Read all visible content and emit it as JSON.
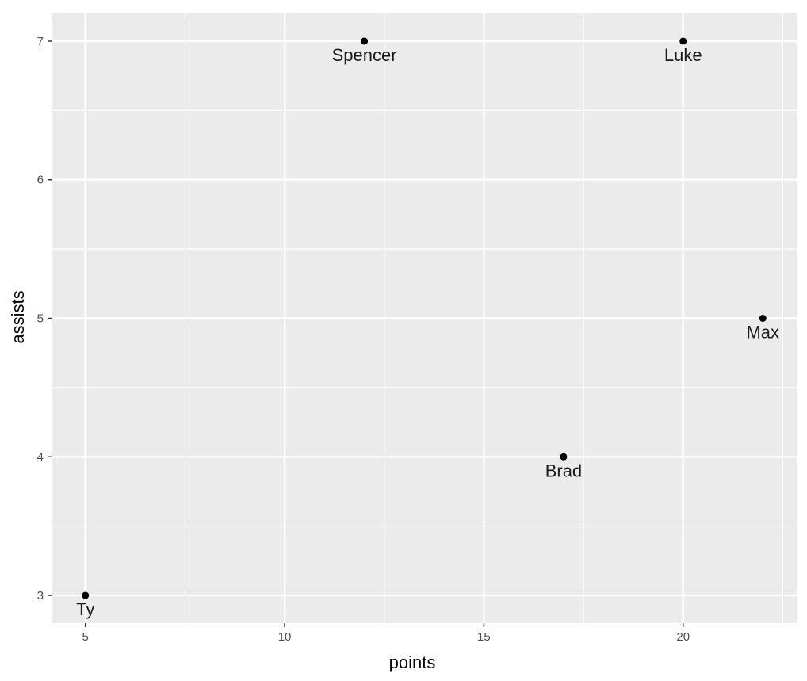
{
  "chart_data": {
    "type": "scatter",
    "title": "",
    "xlabel": "points",
    "ylabel": "assists",
    "xlim": [
      4.15,
      22.85
    ],
    "ylim": [
      2.8,
      7.2
    ],
    "x_ticks": [
      5,
      10,
      15,
      20
    ],
    "y_ticks": [
      3,
      4,
      5,
      6,
      7
    ],
    "x_minor": [
      7.5,
      12.5,
      17.5,
      22.5
    ],
    "y_minor": [
      3.5,
      4.5,
      5.5,
      6.5
    ],
    "grid": true,
    "legend": "none",
    "colors": {
      "panel": "#ebebeb",
      "grid": "#ffffff",
      "point": "#000000",
      "label": "#1a1a1a",
      "tick_text": "#4d4d4d",
      "tick_mark": "#333333"
    },
    "points": [
      {
        "label": "Spencer",
        "x": 12,
        "y": 7
      },
      {
        "label": "Luke",
        "x": 20,
        "y": 7
      },
      {
        "label": "Max",
        "x": 22,
        "y": 5
      },
      {
        "label": "Brad",
        "x": 17,
        "y": 4
      },
      {
        "label": "Ty",
        "x": 5,
        "y": 3
      }
    ]
  }
}
